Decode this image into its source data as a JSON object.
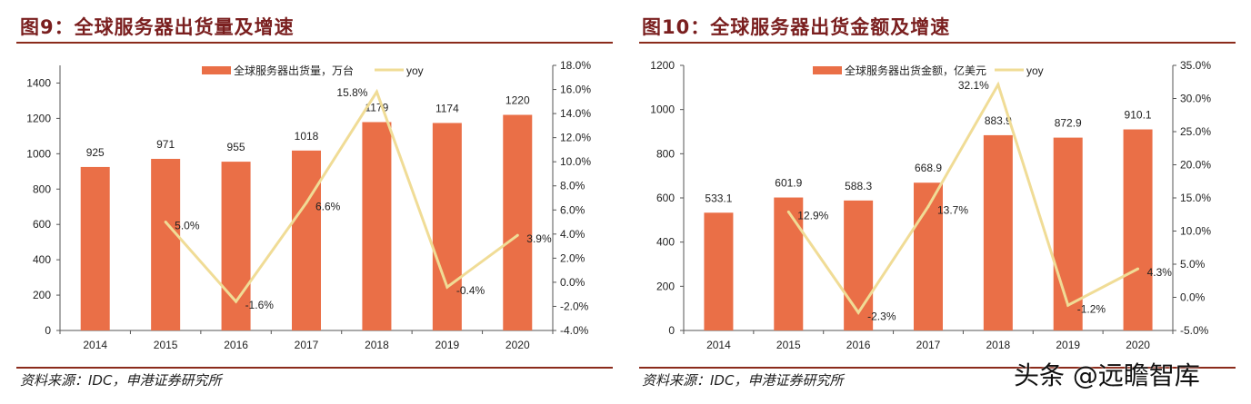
{
  "charts": [
    {
      "title": "图9：全球服务器出货量及增速",
      "source": "资料来源：IDC，申港证券研究所"
    },
    {
      "title": "图10：全球服务器出货金额及增速",
      "source": "资料来源：IDC，申港证券研究所"
    }
  ],
  "watermark": "头条 @远瞻智库",
  "colors": {
    "bar": "#ea6f47",
    "line": "#f0dc96",
    "title": "#7a1f1f",
    "rule": "#8b2b1b"
  },
  "chart_data": [
    {
      "type": "bar+line",
      "categories": [
        "2014",
        "2015",
        "2016",
        "2017",
        "2018",
        "2019",
        "2020"
      ],
      "series": [
        {
          "name": "全球服务器出货量，万台",
          "type": "bar",
          "axis": "left",
          "values": [
            925,
            971,
            955,
            1018,
            1179,
            1174,
            1220
          ],
          "labels": [
            "925",
            "971",
            "955",
            "1018",
            "1179",
            "1174",
            "1220"
          ]
        },
        {
          "name": "yoy",
          "type": "line",
          "axis": "right",
          "values": [
            null,
            5.0,
            -1.6,
            6.6,
            15.8,
            -0.4,
            3.9
          ],
          "labels": [
            "",
            "5.0%",
            "-1.6%",
            "6.6%",
            "15.8%",
            "-0.4%",
            "3.9%"
          ]
        }
      ],
      "left_axis": {
        "ylim": [
          0,
          1500
        ],
        "ticks": [
          "0",
          "200",
          "400",
          "600",
          "800",
          "1000",
          "1200",
          "1400"
        ]
      },
      "right_axis": {
        "ylim": [
          -4,
          18
        ],
        "ticks": [
          "-4.0%",
          "-2.0%",
          "0.0%",
          "2.0%",
          "4.0%",
          "6.0%",
          "8.0%",
          "10.0%",
          "12.0%",
          "14.0%",
          "16.0%",
          "18.0%"
        ]
      },
      "legend": "top-center",
      "grid": false
    },
    {
      "type": "bar+line",
      "categories": [
        "2014",
        "2015",
        "2016",
        "2017",
        "2018",
        "2019",
        "2020"
      ],
      "series": [
        {
          "name": "全球服务器出货金额，亿美元",
          "type": "bar",
          "axis": "left",
          "values": [
            533.1,
            601.9,
            588.3,
            668.9,
            883.9,
            872.9,
            910.1
          ],
          "labels": [
            "533.1",
            "601.9",
            "588.3",
            "668.9",
            "883.9",
            "872.9",
            "910.1"
          ]
        },
        {
          "name": "yoy",
          "type": "line",
          "axis": "right",
          "values": [
            null,
            12.9,
            -2.3,
            13.7,
            32.1,
            -1.2,
            4.3
          ],
          "labels": [
            "",
            "12.9%",
            "-2.3%",
            "13.7%",
            "32.1%",
            "-1.2%",
            "4.3%"
          ]
        }
      ],
      "left_axis": {
        "ylim": [
          0,
          1200
        ],
        "ticks": [
          "0",
          "200",
          "400",
          "600",
          "800",
          "1000",
          "1200"
        ]
      },
      "right_axis": {
        "ylim": [
          -5,
          35
        ],
        "ticks": [
          "-5.0%",
          "0.0%",
          "5.0%",
          "10.0%",
          "15.0%",
          "20.0%",
          "25.0%",
          "30.0%",
          "35.0%"
        ]
      },
      "legend": "top-center",
      "grid": false
    }
  ]
}
